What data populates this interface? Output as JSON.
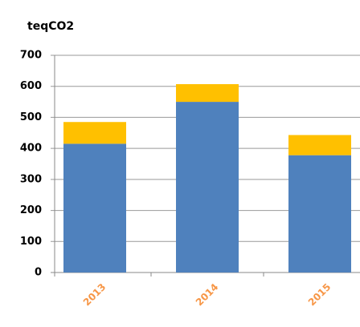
{
  "chart_data": {
    "type": "stacked_bar",
    "title": "teqCO2",
    "categories": [
      "2013",
      "2014",
      "2015"
    ],
    "series": [
      {
        "color": "#4f81bd",
        "values": [
          415,
          550,
          378
        ]
      },
      {
        "color": "#ffc000",
        "values": [
          70,
          57,
          65
        ]
      }
    ],
    "category_color": "#f79646",
    "ylim": [
      0,
      700
    ],
    "yticks": [
      0,
      100,
      200,
      300,
      400,
      500,
      600,
      700
    ],
    "grid": true
  }
}
